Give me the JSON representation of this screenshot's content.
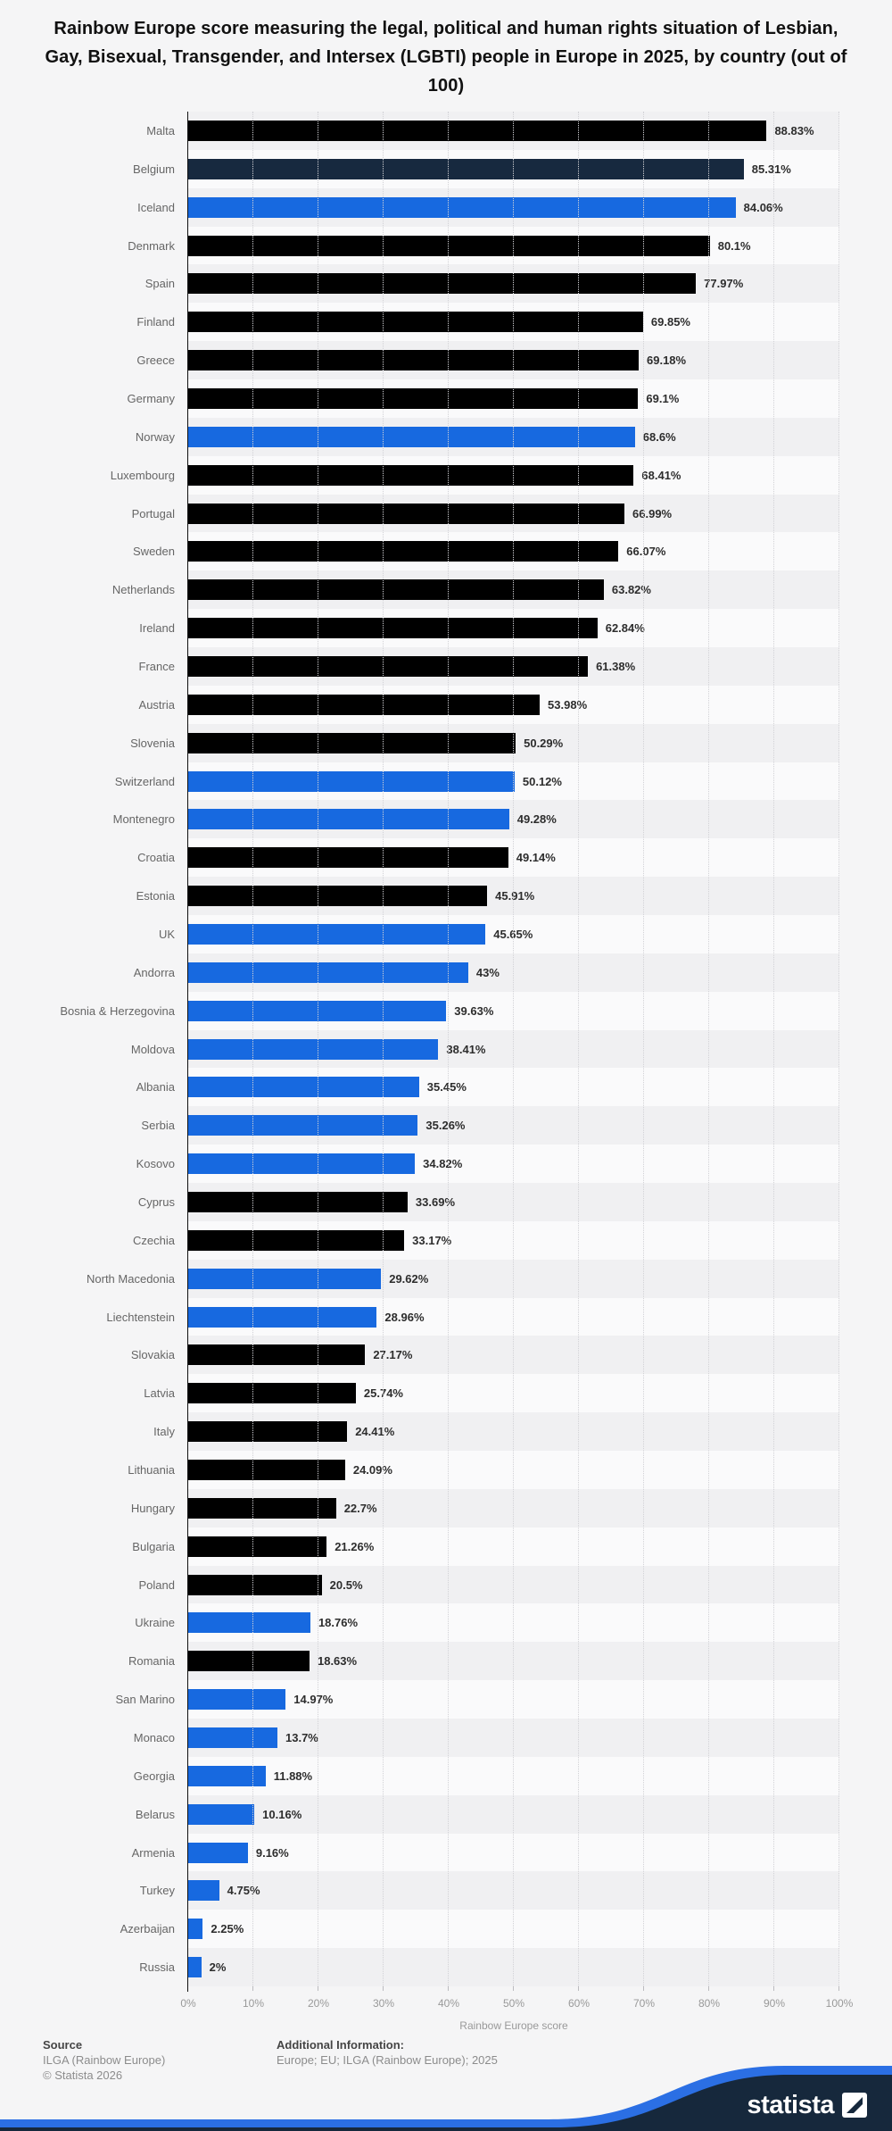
{
  "title": "Rainbow Europe score measuring the legal, political and human rights situation of Lesbian, Gay, Bisexual, Transgender, and Intersex (LGBTI) people in Europe in 2025, by country (out of 100)",
  "colors": {
    "black": "#000000",
    "navy": "#17293f",
    "blue": "#1769e0",
    "wave_blue": "#2b6fe4",
    "wave_navy": "#16283c",
    "stripe_dark": "#f0f0f2",
    "stripe_light": "#fafafb"
  },
  "chart_data": {
    "type": "bar",
    "orientation": "horizontal",
    "title": "Rainbow Europe score measuring the legal, political and human rights situation of Lesbian, Gay, Bisexual, Transgender, and Intersex (LGBTI) people in Europe in 2025, by country (out of 100)",
    "xlabel": "Rainbow Europe score",
    "xlim": [
      0,
      100
    ],
    "x_tick_labels": [
      "0%",
      "10%",
      "20%",
      "30%",
      "40%",
      "50%",
      "60%",
      "70%",
      "80%",
      "90%",
      "100%"
    ],
    "grid": "vertical-dotted",
    "legend": "none",
    "bars": [
      {
        "country": "Malta",
        "value": 88.83,
        "display": "88.83%",
        "color": "black"
      },
      {
        "country": "Belgium",
        "value": 85.31,
        "display": "85.31%",
        "color": "navy"
      },
      {
        "country": "Iceland",
        "value": 84.06,
        "display": "84.06%",
        "color": "blue"
      },
      {
        "country": "Denmark",
        "value": 80.1,
        "display": "80.1%",
        "color": "black"
      },
      {
        "country": "Spain",
        "value": 77.97,
        "display": "77.97%",
        "color": "black"
      },
      {
        "country": "Finland",
        "value": 69.85,
        "display": "69.85%",
        "color": "black"
      },
      {
        "country": "Greece",
        "value": 69.18,
        "display": "69.18%",
        "color": "black"
      },
      {
        "country": "Germany",
        "value": 69.1,
        "display": "69.1%",
        "color": "black"
      },
      {
        "country": "Norway",
        "value": 68.6,
        "display": "68.6%",
        "color": "blue"
      },
      {
        "country": "Luxembourg",
        "value": 68.41,
        "display": "68.41%",
        "color": "black"
      },
      {
        "country": "Portugal",
        "value": 66.99,
        "display": "66.99%",
        "color": "black"
      },
      {
        "country": "Sweden",
        "value": 66.07,
        "display": "66.07%",
        "color": "black"
      },
      {
        "country": "Netherlands",
        "value": 63.82,
        "display": "63.82%",
        "color": "black"
      },
      {
        "country": "Ireland",
        "value": 62.84,
        "display": "62.84%",
        "color": "black"
      },
      {
        "country": "France",
        "value": 61.38,
        "display": "61.38%",
        "color": "black"
      },
      {
        "country": "Austria",
        "value": 53.98,
        "display": "53.98%",
        "color": "black"
      },
      {
        "country": "Slovenia",
        "value": 50.29,
        "display": "50.29%",
        "color": "black"
      },
      {
        "country": "Switzerland",
        "value": 50.12,
        "display": "50.12%",
        "color": "blue"
      },
      {
        "country": "Montenegro",
        "value": 49.28,
        "display": "49.28%",
        "color": "blue"
      },
      {
        "country": "Croatia",
        "value": 49.14,
        "display": "49.14%",
        "color": "black"
      },
      {
        "country": "Estonia",
        "value": 45.91,
        "display": "45.91%",
        "color": "black"
      },
      {
        "country": "UK",
        "value": 45.65,
        "display": "45.65%",
        "color": "blue"
      },
      {
        "country": "Andorra",
        "value": 43,
        "display": "43%",
        "color": "blue"
      },
      {
        "country": "Bosnia & Herzegovina",
        "value": 39.63,
        "display": "39.63%",
        "color": "blue"
      },
      {
        "country": "Moldova",
        "value": 38.41,
        "display": "38.41%",
        "color": "blue"
      },
      {
        "country": "Albania",
        "value": 35.45,
        "display": "35.45%",
        "color": "blue"
      },
      {
        "country": "Serbia",
        "value": 35.26,
        "display": "35.26%",
        "color": "blue"
      },
      {
        "country": "Kosovo",
        "value": 34.82,
        "display": "34.82%",
        "color": "blue"
      },
      {
        "country": "Cyprus",
        "value": 33.69,
        "display": "33.69%",
        "color": "black"
      },
      {
        "country": "Czechia",
        "value": 33.17,
        "display": "33.17%",
        "color": "black"
      },
      {
        "country": "North Macedonia",
        "value": 29.62,
        "display": "29.62%",
        "color": "blue"
      },
      {
        "country": "Liechtenstein",
        "value": 28.96,
        "display": "28.96%",
        "color": "blue"
      },
      {
        "country": "Slovakia",
        "value": 27.17,
        "display": "27.17%",
        "color": "black"
      },
      {
        "country": "Latvia",
        "value": 25.74,
        "display": "25.74%",
        "color": "black"
      },
      {
        "country": "Italy",
        "value": 24.41,
        "display": "24.41%",
        "color": "black"
      },
      {
        "country": "Lithuania",
        "value": 24.09,
        "display": "24.09%",
        "color": "black"
      },
      {
        "country": "Hungary",
        "value": 22.7,
        "display": "22.7%",
        "color": "black"
      },
      {
        "country": "Bulgaria",
        "value": 21.26,
        "display": "21.26%",
        "color": "black"
      },
      {
        "country": "Poland",
        "value": 20.5,
        "display": "20.5%",
        "color": "black"
      },
      {
        "country": "Ukraine",
        "value": 18.76,
        "display": "18.76%",
        "color": "blue"
      },
      {
        "country": "Romania",
        "value": 18.63,
        "display": "18.63%",
        "color": "black"
      },
      {
        "country": "San Marino",
        "value": 14.97,
        "display": "14.97%",
        "color": "blue"
      },
      {
        "country": "Monaco",
        "value": 13.7,
        "display": "13.7%",
        "color": "blue"
      },
      {
        "country": "Georgia",
        "value": 11.88,
        "display": "11.88%",
        "color": "blue"
      },
      {
        "country": "Belarus",
        "value": 10.16,
        "display": "10.16%",
        "color": "blue"
      },
      {
        "country": "Armenia",
        "value": 9.16,
        "display": "9.16%",
        "color": "blue"
      },
      {
        "country": "Turkey",
        "value": 4.75,
        "display": "4.75%",
        "color": "blue"
      },
      {
        "country": "Azerbaijan",
        "value": 2.25,
        "display": "2.25%",
        "color": "blue"
      },
      {
        "country": "Russia",
        "value": 2,
        "display": "2%",
        "color": "blue"
      }
    ]
  },
  "footer": {
    "source_label": "Source",
    "source_org": "ILGA (Rainbow Europe)",
    "copyright": "© Statista 2026",
    "additional_label": "Additional Information:",
    "additional_text": "Europe; EU; ILGA (Rainbow Europe); 2025"
  },
  "branding": {
    "logo_text": "statista"
  }
}
